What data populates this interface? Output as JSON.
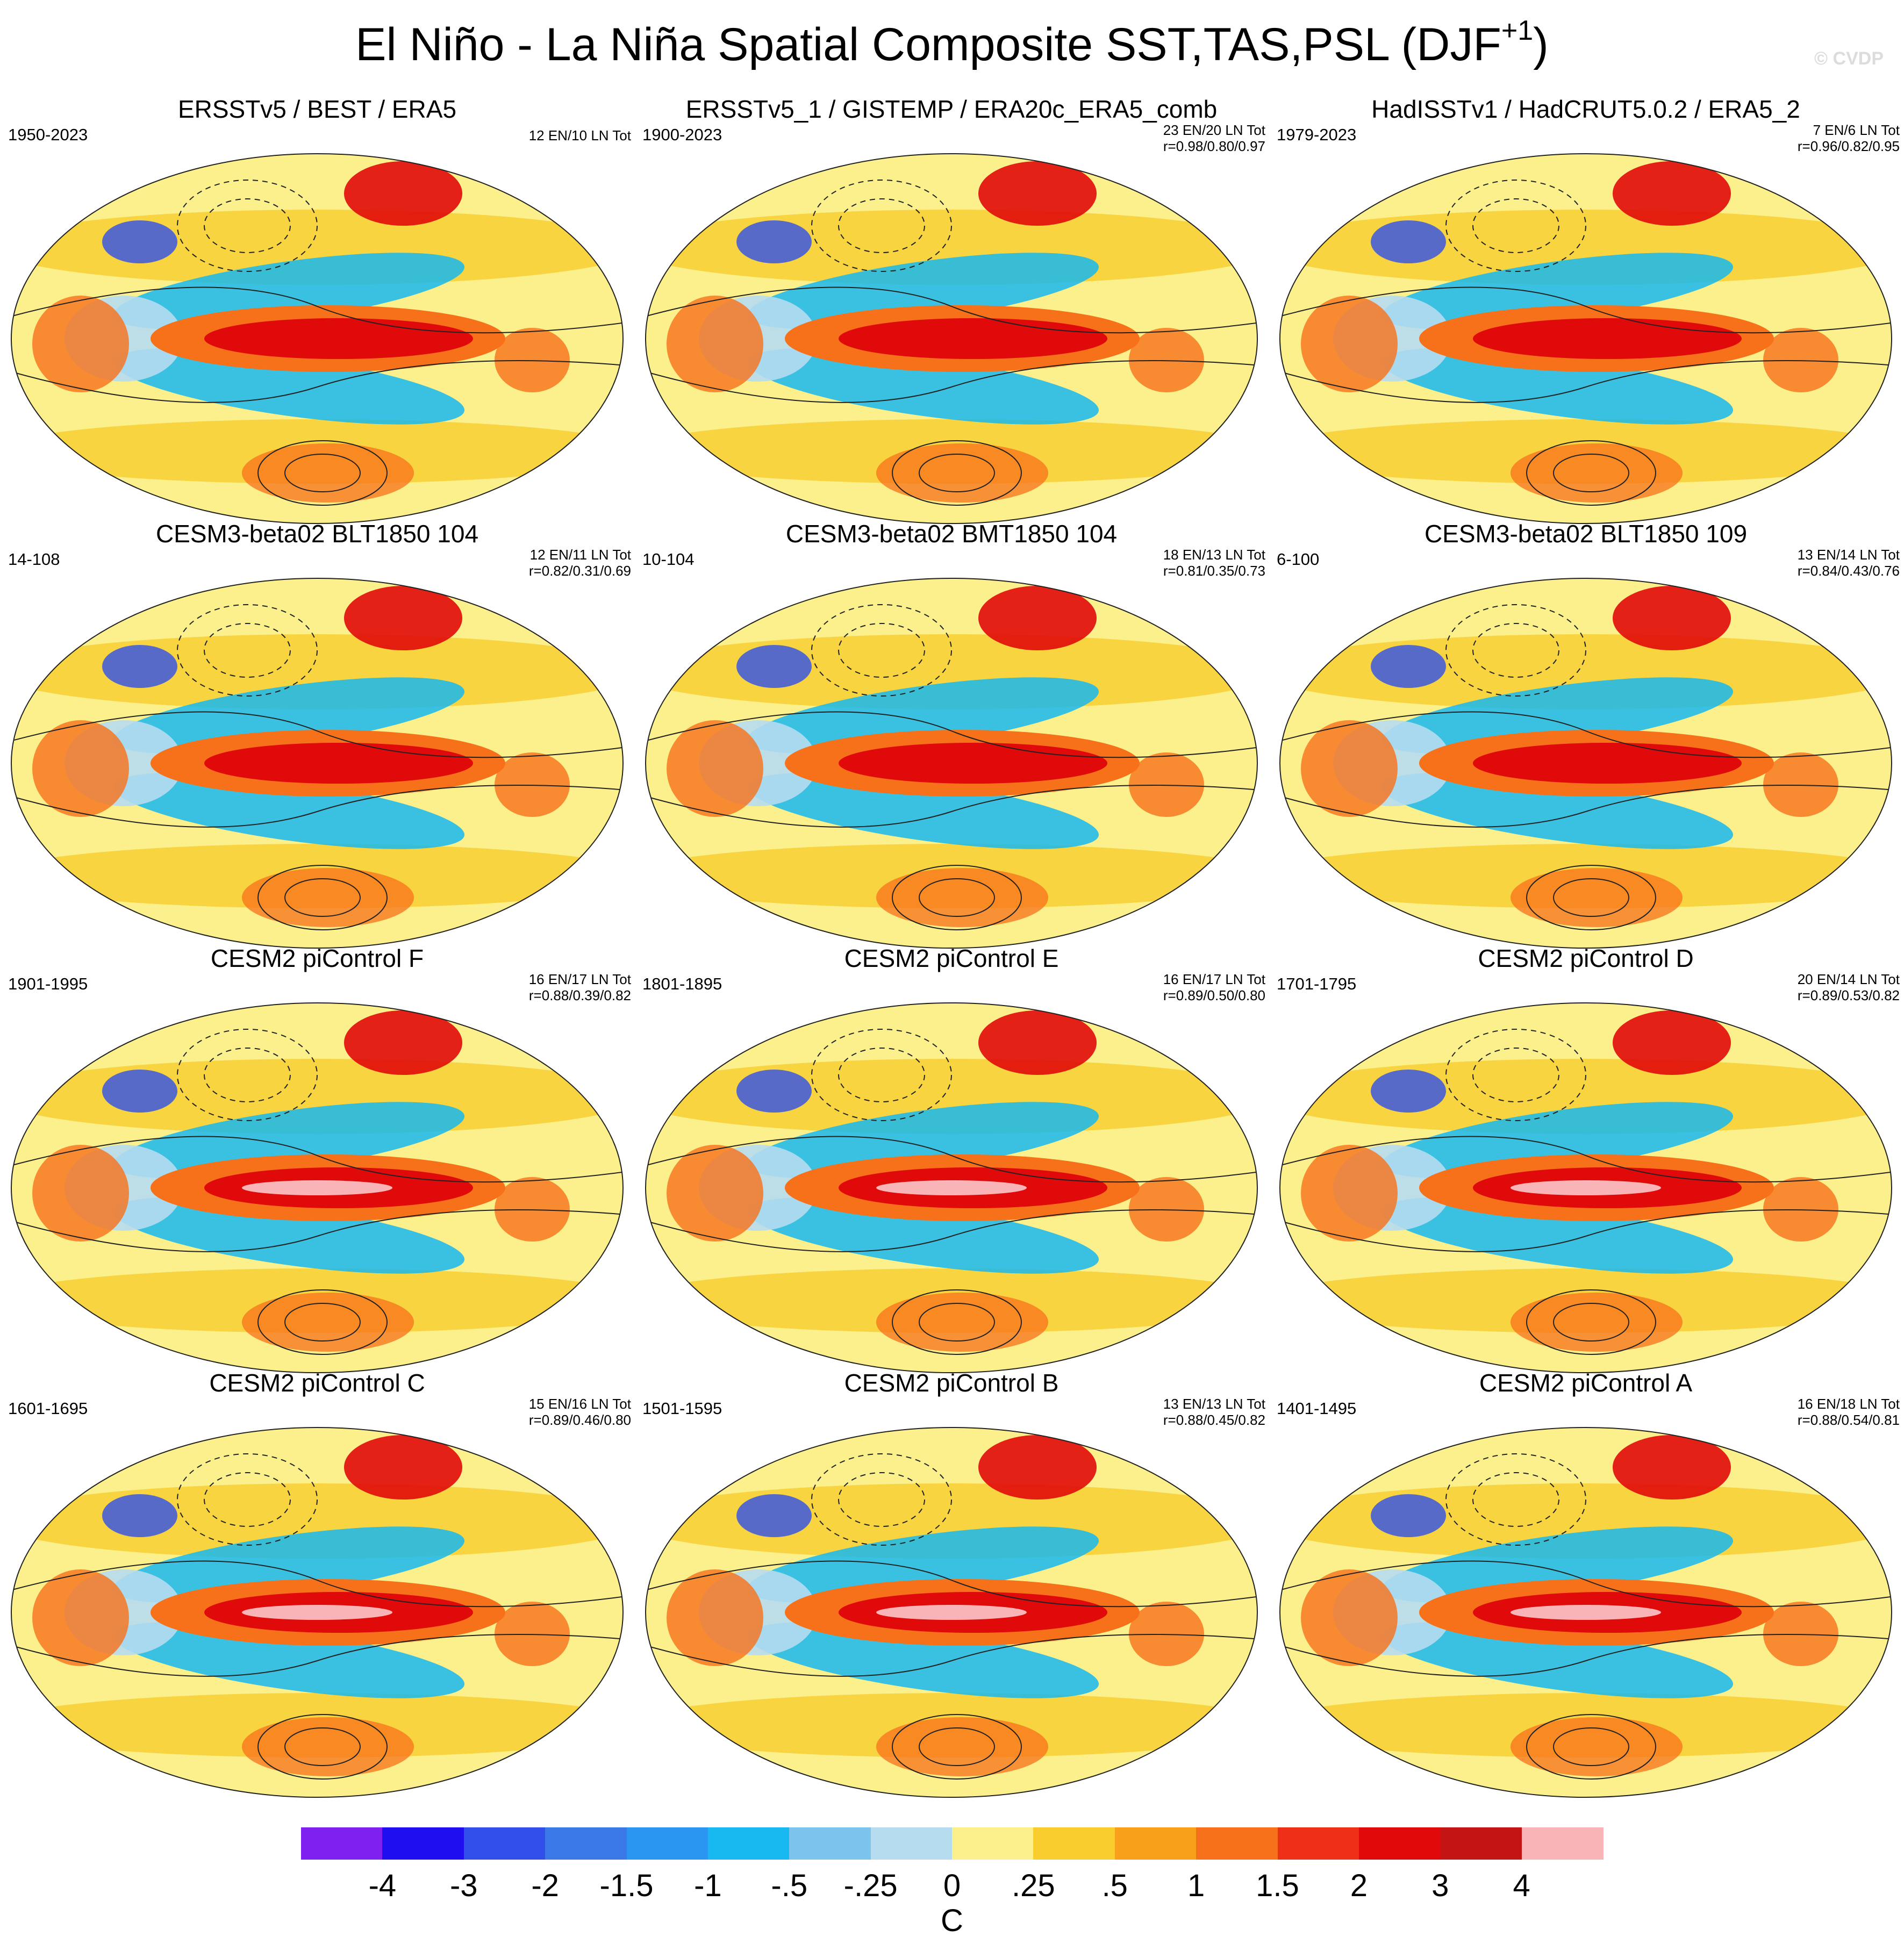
{
  "title": {
    "main": "El Niño - La Niña Spatial Composite SST,TAS,PSL (DJF",
    "superscript": "+1",
    "close": ")"
  },
  "watermark": "© CVDP",
  "panels": [
    {
      "title": "ERSSTv5 / BEST / ERA5",
      "period": "1950-2023",
      "counts": "12 EN/10 LN Tot",
      "corr": ""
    },
    {
      "title": "ERSSTv5_1 / GISTEMP / ERA20c_ERA5_comb",
      "period": "1900-2023",
      "counts": "23 EN/20 LN Tot",
      "corr": "r=0.98/0.80/0.97"
    },
    {
      "title": "HadISSTv1 / HadCRUT5.0.2 / ERA5_2",
      "period": "1979-2023",
      "counts": "7 EN/6 LN Tot",
      "corr": "r=0.96/0.82/0.95"
    },
    {
      "title": "CESM3-beta02 BLT1850 104",
      "period": "14-108",
      "counts": "12 EN/11 LN Tot",
      "corr": "r=0.82/0.31/0.69"
    },
    {
      "title": "CESM3-beta02 BMT1850 104",
      "period": "10-104",
      "counts": "18 EN/13 LN Tot",
      "corr": "r=0.81/0.35/0.73"
    },
    {
      "title": "CESM3-beta02 BLT1850 109",
      "period": "6-100",
      "counts": "13 EN/14 LN Tot",
      "corr": "r=0.84/0.43/0.76"
    },
    {
      "title": "CESM2 piControl F",
      "period": "1901-1995",
      "counts": "16 EN/17 LN Tot",
      "corr": "r=0.88/0.39/0.82"
    },
    {
      "title": "CESM2 piControl E",
      "period": "1801-1895",
      "counts": "16 EN/17 LN Tot",
      "corr": "r=0.89/0.50/0.80"
    },
    {
      "title": "CESM2 piControl D",
      "period": "1701-1795",
      "counts": "20 EN/14 LN Tot",
      "corr": "r=0.89/0.53/0.82"
    },
    {
      "title": "CESM2 piControl C",
      "period": "1601-1695",
      "counts": "15 EN/16 LN Tot",
      "corr": "r=0.89/0.46/0.80"
    },
    {
      "title": "CESM2 piControl B",
      "period": "1501-1595",
      "counts": "13 EN/13 LN Tot",
      "corr": "r=0.88/0.45/0.82"
    },
    {
      "title": "CESM2 piControl A",
      "period": "1401-1495",
      "counts": "16 EN/18 LN Tot",
      "corr": "r=0.88/0.54/0.81"
    }
  ],
  "colorbar": {
    "unit": "C",
    "labels": [
      "-4",
      "-3",
      "-2",
      "-1.5",
      "-1",
      "-.5",
      "-.25",
      "0",
      ".25",
      ".5",
      "1",
      "1.5",
      "2",
      "3",
      "4"
    ],
    "colors": [
      "#7f1ff0",
      "#1f0ff0",
      "#2f4fe8",
      "#3a78e8",
      "#2b96f2",
      "#18b8f0",
      "#7cc4ee",
      "#b6dcf0",
      "#fbf08c",
      "#f9cd2e",
      "#f9a01a",
      "#f7701a",
      "#ef3018",
      "#e00a0a",
      "#c41515",
      "#f9b4b8"
    ]
  },
  "palette": {
    "ocean_warm_core": "#e00a0a",
    "warm": "#f7701a",
    "mild_warm": "#fbf08c",
    "cool": "#18b8f0",
    "light_cool": "#b6dcf0"
  }
}
